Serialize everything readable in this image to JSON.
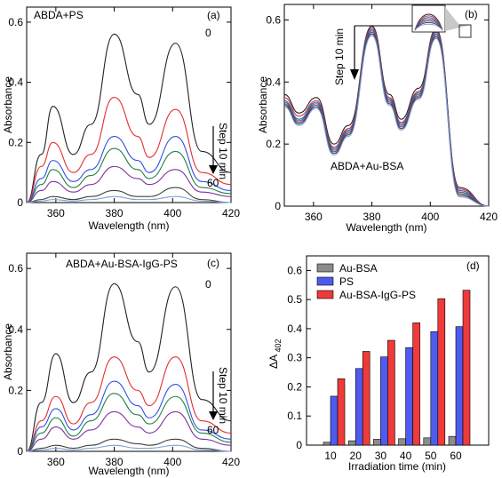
{
  "chart_data": [
    {
      "panel": "(a)",
      "type": "line",
      "annotation": "ABDA+PS",
      "step_label": "Step 10 min",
      "start_label": "0",
      "end_label": "60",
      "xlabel": "Wavelength (nm)",
      "ylabel": "Absorbance",
      "xlim": [
        350,
        420
      ],
      "ylim": [
        0,
        0.65
      ],
      "xticks": [
        360,
        380,
        400,
        420
      ],
      "yticks": [
        0,
        0.2,
        0.4,
        0.6
      ],
      "colors": [
        "#222222",
        "#e03030",
        "#3050e0",
        "#208040",
        "#8030a0",
        "#404040",
        "#80a0d0"
      ],
      "series": [
        {
          "values": [
            0.0,
            0.16,
            0.32,
            0.16,
            0.26,
            0.56,
            0.36,
            0.26,
            0.53,
            0.17,
            0.1
          ]
        },
        {
          "values": [
            0.0,
            0.12,
            0.2,
            0.1,
            0.16,
            0.35,
            0.22,
            0.15,
            0.31,
            0.1,
            0.06
          ]
        },
        {
          "values": [
            0.0,
            0.08,
            0.14,
            0.07,
            0.11,
            0.22,
            0.14,
            0.1,
            0.22,
            0.07,
            0.04
          ]
        },
        {
          "values": [
            0.0,
            0.06,
            0.11,
            0.05,
            0.09,
            0.18,
            0.11,
            0.08,
            0.17,
            0.05,
            0.03
          ]
        },
        {
          "values": [
            0.0,
            0.04,
            0.07,
            0.035,
            0.06,
            0.12,
            0.08,
            0.06,
            0.11,
            0.035,
            0.02
          ]
        },
        {
          "values": [
            0.0,
            0.01,
            0.02,
            0.01,
            0.02,
            0.04,
            0.02,
            0.02,
            0.05,
            0.01,
            0.0
          ]
        },
        {
          "values": [
            0.0,
            0.005,
            0.01,
            0.005,
            0.01,
            0.02,
            0.01,
            0.01,
            0.02,
            0.005,
            0.0
          ]
        }
      ],
      "x": [
        350,
        355,
        359,
        366,
        372,
        380,
        388,
        392,
        401,
        410,
        420
      ]
    },
    {
      "panel": "(b)",
      "type": "line",
      "annotation": "ABDA+Au-BSA",
      "step_label": "Step 10 min",
      "xlabel": "Wavelength (nm)",
      "ylabel": "Absorbance",
      "xlim": [
        350,
        420
      ],
      "ylim": [
        0,
        0.65
      ],
      "xticks": [
        360,
        380,
        400,
        420
      ],
      "yticks": [
        0,
        0.2,
        0.4,
        0.6
      ],
      "colors": [
        "#222222",
        "#e03030",
        "#3050e0",
        "#208040",
        "#8030a0",
        "#404040",
        "#80a0d0"
      ],
      "x": [
        350,
        355,
        361,
        367,
        372,
        380,
        386,
        390,
        396,
        402,
        410,
        420
      ],
      "series": [
        {
          "values": [
            0.36,
            0.3,
            0.35,
            0.2,
            0.26,
            0.58,
            0.36,
            0.28,
            0.38,
            0.57,
            0.06,
            0.0
          ]
        },
        {
          "values": [
            0.35,
            0.29,
            0.34,
            0.19,
            0.25,
            0.575,
            0.35,
            0.27,
            0.37,
            0.565,
            0.055,
            0.0
          ]
        },
        {
          "values": [
            0.34,
            0.28,
            0.335,
            0.185,
            0.245,
            0.57,
            0.345,
            0.265,
            0.365,
            0.56,
            0.05,
            0.0
          ]
        },
        {
          "values": [
            0.335,
            0.275,
            0.33,
            0.18,
            0.24,
            0.565,
            0.34,
            0.26,
            0.36,
            0.555,
            0.045,
            0.0
          ]
        },
        {
          "values": [
            0.33,
            0.27,
            0.325,
            0.175,
            0.235,
            0.56,
            0.335,
            0.255,
            0.355,
            0.55,
            0.04,
            0.0
          ]
        },
        {
          "values": [
            0.325,
            0.265,
            0.32,
            0.17,
            0.23,
            0.555,
            0.33,
            0.25,
            0.35,
            0.545,
            0.035,
            0.0
          ]
        },
        {
          "values": [
            0.32,
            0.26,
            0.315,
            0.165,
            0.225,
            0.55,
            0.325,
            0.245,
            0.345,
            0.54,
            0.03,
            0.0
          ]
        }
      ]
    },
    {
      "panel": "(c)",
      "type": "line",
      "annotation": "ABDA+Au-BSA-IgG-PS",
      "step_label": "Step 10 min",
      "start_label": "0",
      "end_label": "60",
      "xlabel": "Wavelength (nm)",
      "ylabel": "Absorbance",
      "xlim": [
        350,
        420
      ],
      "ylim": [
        0,
        0.65
      ],
      "xticks": [
        360,
        380,
        400,
        420
      ],
      "yticks": [
        0,
        0.2,
        0.4,
        0.6
      ],
      "colors": [
        "#222222",
        "#e03030",
        "#3050e0",
        "#208040",
        "#8030a0",
        "#404040",
        "#80a0d0"
      ],
      "x": [
        350,
        355,
        360,
        366,
        372,
        380,
        388,
        392,
        401,
        410,
        420
      ],
      "series": [
        {
          "values": [
            0.0,
            0.16,
            0.32,
            0.16,
            0.26,
            0.55,
            0.36,
            0.26,
            0.54,
            0.17,
            0.1
          ]
        },
        {
          "values": [
            0.0,
            0.1,
            0.18,
            0.09,
            0.16,
            0.31,
            0.2,
            0.15,
            0.31,
            0.1,
            0.06
          ]
        },
        {
          "values": [
            0.0,
            0.08,
            0.14,
            0.07,
            0.12,
            0.23,
            0.15,
            0.11,
            0.22,
            0.07,
            0.04
          ]
        },
        {
          "values": [
            0.0,
            0.06,
            0.11,
            0.05,
            0.1,
            0.19,
            0.12,
            0.09,
            0.18,
            0.06,
            0.03
          ]
        },
        {
          "values": [
            0.0,
            0.04,
            0.08,
            0.04,
            0.07,
            0.13,
            0.08,
            0.06,
            0.13,
            0.04,
            0.02
          ]
        },
        {
          "values": [
            0.0,
            0.01,
            0.02,
            0.01,
            0.02,
            0.04,
            0.025,
            0.02,
            0.04,
            0.01,
            0.0
          ]
        },
        {
          "values": [
            0.0,
            0.005,
            0.01,
            0.005,
            0.01,
            0.02,
            0.01,
            0.01,
            0.02,
            0.005,
            0.0
          ]
        }
      ]
    },
    {
      "panel": "(d)",
      "type": "bar",
      "xlabel": "Irradiation time (min)",
      "ylabel_main": "ΔA",
      "ylabel_sub": "402",
      "categories": [
        "10",
        "20",
        "30",
        "40",
        "50",
        "60"
      ],
      "ylim": [
        0,
        0.65
      ],
      "yticks": [
        0,
        0.1,
        0.2,
        0.3,
        0.4,
        0.5,
        0.6
      ],
      "legend_position": "top-left",
      "series": [
        {
          "name": "Au-BSA",
          "color": "#8c8c8c",
          "values": [
            0.01,
            0.015,
            0.02,
            0.022,
            0.025,
            0.03
          ]
        },
        {
          "name": "PS",
          "color": "#4f5bef",
          "values": [
            0.168,
            0.263,
            0.303,
            0.335,
            0.39,
            0.407
          ]
        },
        {
          "name": "Au-BSA-IgG-PS",
          "color": "#ef3a3a",
          "values": [
            0.228,
            0.322,
            0.36,
            0.42,
            0.503,
            0.532
          ]
        }
      ]
    }
  ]
}
